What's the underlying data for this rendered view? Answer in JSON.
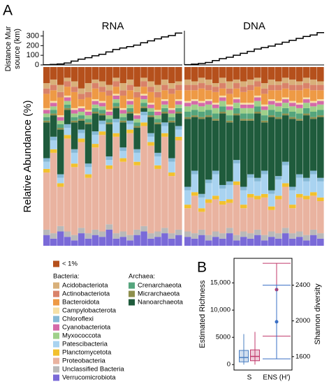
{
  "chart_data": [
    {
      "type": "line",
      "step": true,
      "panel_label": "A",
      "facets": [
        "RNA",
        "DNA"
      ],
      "ylabel": [
        "Distance Mur",
        "source (km)"
      ],
      "ylim": [
        0,
        340
      ],
      "yticks": [
        0,
        100,
        200,
        300
      ],
      "color": "#000000",
      "values": [
        [
          2,
          5,
          10,
          20,
          40,
          60,
          75,
          95,
          110,
          135,
          160,
          175,
          190,
          205,
          230,
          250,
          270,
          290,
          305,
          330
        ],
        [
          3,
          8,
          15,
          25,
          45,
          65,
          80,
          100,
          120,
          140,
          165,
          180,
          195,
          215,
          235,
          255,
          275,
          295,
          310,
          335
        ]
      ]
    },
    {
      "type": "bar",
      "stacked": true,
      "ylabel": "Relative Abundance (%)",
      "ylim": [
        0,
        100
      ],
      "legend_groups": [
        "Bacteria:",
        "Archaea:"
      ],
      "series": [
        {
          "name": "< 1%",
          "color": "#b5501c",
          "values": [
            [
              9,
              7,
              10,
              6,
              8,
              12,
              9,
              7,
              8,
              10,
              6,
              9,
              7,
              11,
              6,
              8,
              10,
              7,
              9,
              8
            ],
            [
              7,
              8,
              6,
              7,
              9,
              6,
              8,
              7,
              8,
              7,
              6,
              9,
              7,
              8,
              6,
              7,
              8,
              6,
              7,
              8
            ]
          ]
        },
        {
          "name": "Acidobacteriota",
          "color": "#d8b07a",
          "values": [
            [
              3,
              3,
              4,
              2,
              3,
              3,
              5,
              2,
              3,
              3,
              2,
              4,
              3,
              3,
              2,
              3,
              4,
              3,
              3,
              2
            ],
            [
              3,
              2,
              3,
              3,
              2,
              3,
              4,
              2,
              3,
              3,
              2,
              3,
              3,
              2,
              3,
              3,
              2,
              3,
              3,
              2
            ]
          ]
        },
        {
          "name": "Actinobacteriota",
          "color": "#d9826a",
          "values": [
            [
              3,
              3,
              3,
              3,
              3,
              3,
              3,
              3,
              3,
              3,
              3,
              3,
              3,
              3,
              3,
              3,
              3,
              3,
              3,
              3
            ],
            [
              3,
              3,
              3,
              3,
              3,
              3,
              3,
              3,
              3,
              3,
              3,
              3,
              3,
              3,
              3,
              3,
              3,
              3,
              3,
              3
            ]
          ]
        },
        {
          "name": "Bacteroidota",
          "color": "#ee9a45",
          "values": [
            [
              8,
              6,
              10,
              5,
              9,
              4,
              7,
              6,
              5,
              8,
              4,
              7,
              5,
              9,
              4,
              6,
              7,
              5,
              8,
              5
            ],
            [
              6,
              5,
              7,
              5,
              6,
              4,
              6,
              5,
              6,
              7,
              5,
              6,
              5,
              6,
              5,
              6,
              7,
              5,
              6,
              5
            ]
          ]
        },
        {
          "name": "Campylobacterota",
          "color": "#f6e0a6",
          "values": [
            [
              1,
              1,
              1,
              1,
              1,
              1,
              1,
              1,
              1,
              1,
              1,
              1,
              1,
              1,
              1,
              1,
              1,
              1,
              1,
              1
            ],
            [
              1,
              1,
              1,
              1,
              1,
              1,
              1,
              1,
              1,
              1,
              1,
              1,
              1,
              1,
              1,
              1,
              1,
              1,
              1,
              1
            ]
          ]
        },
        {
          "name": "Chloroflexi",
          "color": "#86b9d6",
          "values": [
            [
              2,
              2,
              2,
              2,
              2,
              2,
              2,
              2,
              2,
              2,
              2,
              2,
              2,
              2,
              2,
              2,
              2,
              2,
              2,
              2
            ],
            [
              2,
              2,
              2,
              2,
              2,
              2,
              2,
              2,
              2,
              2,
              2,
              2,
              2,
              2,
              2,
              2,
              2,
              2,
              2,
              2
            ]
          ]
        },
        {
          "name": "Cyanobacteriota",
          "color": "#d56aa8",
          "values": [
            [
              2,
              2,
              2,
              2,
              2,
              2,
              2,
              2,
              2,
              2,
              2,
              2,
              2,
              2,
              2,
              2,
              2,
              2,
              2,
              2
            ],
            [
              2,
              2,
              2,
              2,
              2,
              2,
              2,
              2,
              2,
              2,
              2,
              2,
              2,
              2,
              2,
              2,
              2,
              2,
              2,
              2
            ]
          ]
        },
        {
          "name": "Myxococcota",
          "color": "#9fd08a",
          "values": [
            [
              2,
              2,
              2,
              2,
              2,
              2,
              2,
              2,
              2,
              2,
              2,
              2,
              2,
              2,
              2,
              2,
              2,
              2,
              2,
              2
            ],
            [
              3,
              3,
              3,
              3,
              3,
              3,
              3,
              3,
              3,
              3,
              3,
              3,
              3,
              3,
              3,
              3,
              3,
              3,
              3,
              3
            ]
          ]
        },
        {
          "name": "Patescibacteria",
          "color": "#a9d3f0",
          "values": [
            [
              4,
              5,
              3,
              4,
              6,
              3,
              4,
              5,
              4,
              3,
              6,
              4,
              3,
              5,
              4,
              3,
              5,
              4,
              6,
              4
            ],
            [
              8,
              10,
              6,
              9,
              12,
              7,
              8,
              10,
              8,
              9,
              8,
              11,
              7,
              9,
              10,
              8,
              9,
              8,
              10,
              9
            ]
          ]
        },
        {
          "name": "Planctomycetota",
          "color": "#f2c12e",
          "values": [
            [
              2,
              2,
              2,
              2,
              2,
              2,
              2,
              2,
              2,
              2,
              2,
              2,
              2,
              2,
              2,
              2,
              2,
              2,
              2,
              2
            ],
            [
              2,
              2,
              2,
              2,
              2,
              2,
              2,
              2,
              2,
              2,
              2,
              2,
              2,
              2,
              2,
              2,
              2,
              2,
              2,
              2
            ]
          ]
        },
        {
          "name": "Proteobacteria",
          "color": "#e9b3a0",
          "values": [
            [
              32,
              45,
              22,
              52,
              38,
              48,
              31,
              46,
              54,
              31,
              54,
              39,
              57,
              36,
              56,
              49,
              35,
              51,
              32,
              50
            ],
            [
              13,
              21,
              10,
              18,
              18,
              16,
              14,
              28,
              13,
              20,
              17,
              21,
              12,
              19,
              23,
              14,
              19,
              20,
              19,
              18
            ]
          ]
        },
        {
          "name": "Unclassified Bacteria",
          "color": "#b9b9b9",
          "values": [
            [
              3,
              3,
              3,
              3,
              3,
              3,
              3,
              3,
              3,
              3,
              3,
              3,
              3,
              3,
              3,
              3,
              3,
              3,
              3,
              3
            ],
            [
              3,
              3,
              3,
              3,
              3,
              3,
              3,
              3,
              3,
              3,
              3,
              3,
              3,
              3,
              3,
              3,
              3,
              3,
              3,
              3
            ]
          ]
        },
        {
          "name": "Verrucomicrobiota",
          "color": "#7a6ad8",
          "values": [
            [
              6,
              4,
              8,
              5,
              3,
              7,
              4,
              6,
              5,
              9,
              4,
              5,
              3,
              6,
              8,
              4,
              5,
              7,
              4,
              6
            ],
            [
              5,
              4,
              6,
              3,
              5,
              4,
              7,
              3,
              5,
              4,
              6,
              3,
              5,
              4,
              7,
              4,
              5,
              3,
              6,
              4
            ]
          ]
        },
        {
          "name": "Crenarchaeota",
          "color": "#55a57d",
          "values": [
            [
              2,
              2,
              2,
              2,
              2,
              2,
              2,
              2,
              2,
              2,
              2,
              2,
              2,
              2,
              2,
              2,
              2,
              2,
              2,
              2
            ],
            [
              3,
              3,
              3,
              3,
              3,
              3,
              3,
              3,
              3,
              3,
              3,
              3,
              3,
              3,
              3,
              3,
              3,
              3,
              3,
              3
            ]
          ]
        },
        {
          "name": "Micrarchaeota",
          "color": "#8e8f4c",
          "values": [
            [
              1,
              1,
              1,
              1,
              1,
              1,
              1,
              1,
              1,
              1,
              1,
              1,
              1,
              1,
              1,
              1,
              1,
              1,
              1,
              1
            ],
            [
              1,
              1,
              1,
              1,
              1,
              1,
              1,
              1,
              1,
              1,
              1,
              1,
              1,
              1,
              1,
              1,
              1,
              1,
              1,
              1
            ]
          ]
        },
        {
          "name": "Nanoarchaeota",
          "color": "#1f5b3c",
          "values": [
            [
              20,
              12,
              25,
              8,
              15,
              5,
              22,
              10,
              3,
              18,
              6,
              14,
              4,
              12,
              2,
              9,
              16,
              5,
              20,
              7
            ],
            [
              38,
              30,
              42,
              35,
              28,
              40,
              33,
              25,
              37,
              30,
              36,
              27,
              41,
              32,
              26,
              38,
              30,
              35,
              29,
              34
            ]
          ]
        }
      ]
    },
    {
      "type": "box",
      "panel_label": "B",
      "ylabel": "Estimated Richness",
      "y2label": "Shannon diversity",
      "categories": [
        "S",
        "ENS (H')"
      ],
      "ylim": [
        -1000,
        19500
      ],
      "yticks": [
        0,
        5000,
        {
          "value": 10000,
          "label": "10,000"
        },
        {
          "value": 15000,
          "label": "15,000"
        }
      ],
      "y2lim": [
        1450,
        2700
      ],
      "y2ticks": [
        1600,
        2000,
        2400
      ],
      "boxes": [
        {
          "color": "#4a7fc1",
          "whislo": 0,
          "q1": 500,
          "med": 1300,
          "q3": 2600,
          "whishi": 5600
        },
        {
          "color": "#c0396b",
          "whislo": 0,
          "q1": 700,
          "med": 1500,
          "q3": 2700,
          "whishi": 6000
        }
      ],
      "ens": [
        {
          "color": "#c0396b",
          "value": 2350,
          "low": 1830,
          "high": 2644,
          "axis": "y2"
        },
        {
          "color": "#3a6fc4",
          "value": 1990,
          "low": 1575,
          "high": 2400,
          "axis": "y2"
        }
      ]
    }
  ]
}
